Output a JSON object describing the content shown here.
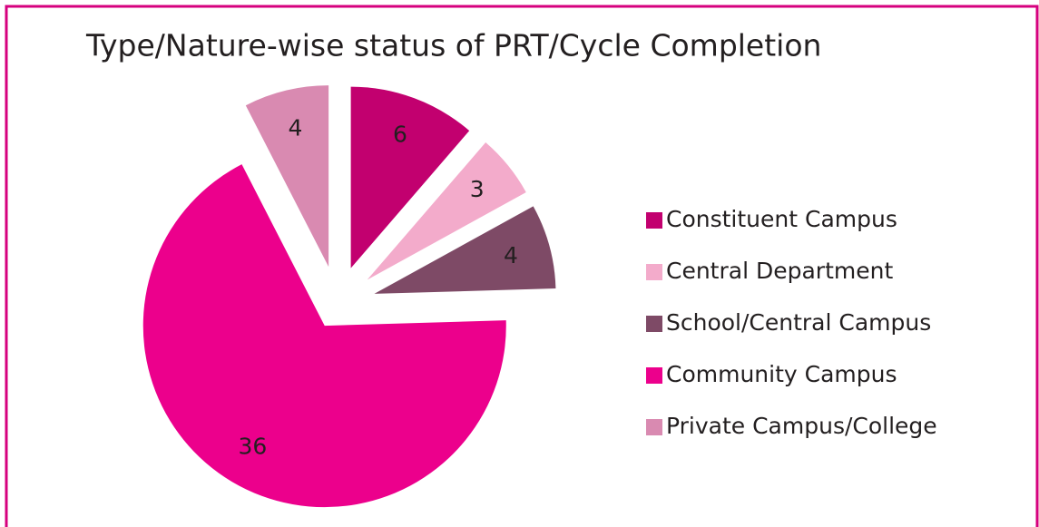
{
  "chart_data": {
    "type": "pie",
    "title": "Type/Nature-wise status  of PRT/Cycle Completion",
    "categories": [
      "Constituent Campus",
      "Central Department",
      "School/Central Campus",
      "Community Campus",
      "Private Campus/College"
    ],
    "values": [
      6,
      3,
      4,
      36,
      4
    ],
    "colors": [
      "#c2006f",
      "#f3abcb",
      "#7e4a66",
      "#ec008c",
      "#d98ab1"
    ],
    "legend": "right"
  }
}
